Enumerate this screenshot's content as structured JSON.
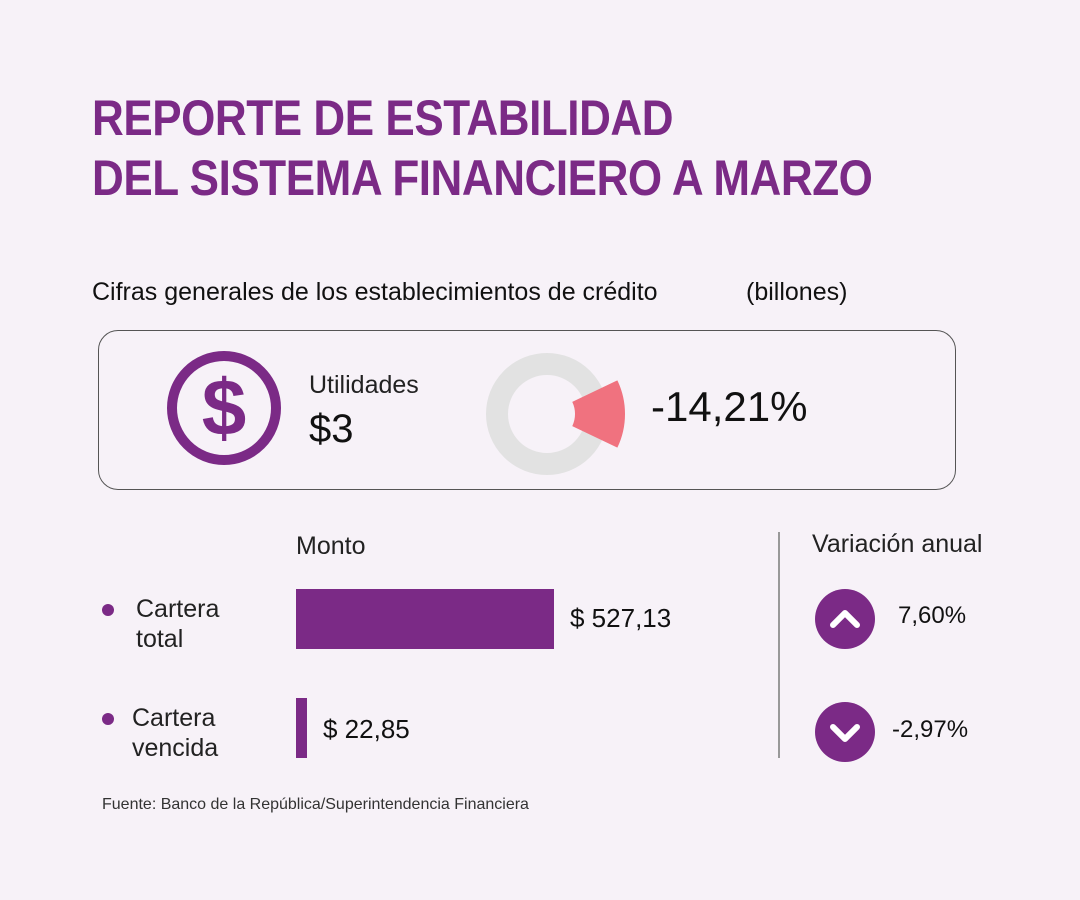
{
  "title": {
    "line1": "REPORTE DE ESTABILIDAD",
    "line2": "DEL SISTEMA FINANCIERO A MARZO"
  },
  "subtitle": "Cifras generales de los establecimientos de crédito",
  "units": "(billones)",
  "summary": {
    "icon": "dollar-icon",
    "label": "Utilidades",
    "value": "$3",
    "change": "-14,21%",
    "change_fraction": 0.1421
  },
  "columns": {
    "amount": "Monto",
    "variation": "Variación anual"
  },
  "colors": {
    "accent": "#7b2a86",
    "negative_slice": "#f0727f",
    "donut_ring": "#e2e2e2",
    "background": "#f7f2f8"
  },
  "chart_data": {
    "type": "bar",
    "categories": [
      "Cartera total",
      "Cartera vencida"
    ],
    "values": [
      527.13,
      22.85
    ],
    "value_labels": [
      "$ 527,13",
      "$ 22,85"
    ],
    "variation": [
      {
        "value": "7,60%",
        "direction": "up",
        "icon": "chevron-up-icon"
      },
      {
        "value": "-2,97%",
        "direction": "down",
        "icon": "chevron-down-icon"
      }
    ]
  },
  "rows": [
    {
      "label_line1": "Cartera",
      "label_line2": "total"
    },
    {
      "label_line1": "Cartera",
      "label_line2": "vencida"
    }
  ],
  "source": "Fuente: Banco de la República/Superintendencia Financiera"
}
